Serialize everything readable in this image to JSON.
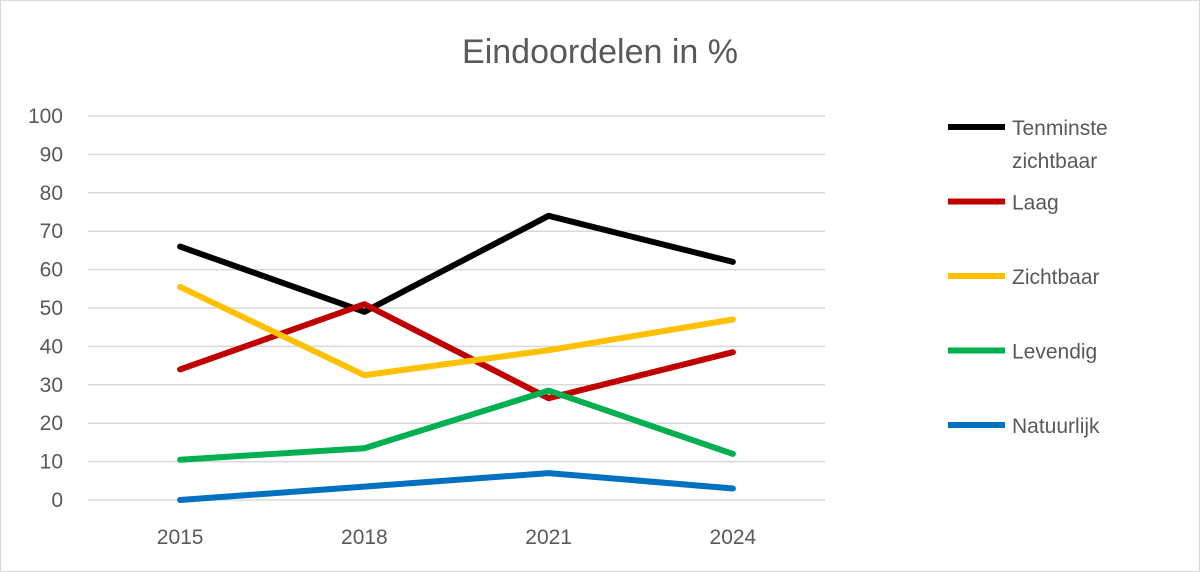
{
  "chart_data": {
    "type": "line",
    "title": "Eindoordelen in %",
    "categories": [
      "2015",
      "2018",
      "2021",
      "2024"
    ],
    "ylim": [
      0,
      100
    ],
    "yticks": [
      0,
      10,
      20,
      30,
      40,
      50,
      60,
      70,
      80,
      90,
      100
    ],
    "grid": true,
    "legend_position": "right",
    "series": [
      {
        "name": "Tenminste zichtbaar",
        "legend_lines": [
          "Tenminste",
          "zichtbaar"
        ],
        "color": "#000000",
        "values": [
          66,
          49,
          74,
          62
        ]
      },
      {
        "name": "Laag",
        "legend_lines": [
          "Laag"
        ],
        "color": "#c00000",
        "values": [
          34,
          51,
          26.5,
          38.5
        ]
      },
      {
        "name": "Zichtbaar",
        "legend_lines": [
          "Zichtbaar"
        ],
        "color": "#ffc000",
        "values": [
          55.5,
          32.5,
          39,
          47
        ]
      },
      {
        "name": "Levendig",
        "legend_lines": [
          "Levendig"
        ],
        "color": "#00b050",
        "values": [
          10.5,
          13.5,
          28.5,
          12
        ]
      },
      {
        "name": "Natuurlijk",
        "legend_lines": [
          "Natuurlijk"
        ],
        "color": "#0070c0",
        "values": [
          0,
          3.5,
          7,
          3
        ]
      }
    ]
  }
}
